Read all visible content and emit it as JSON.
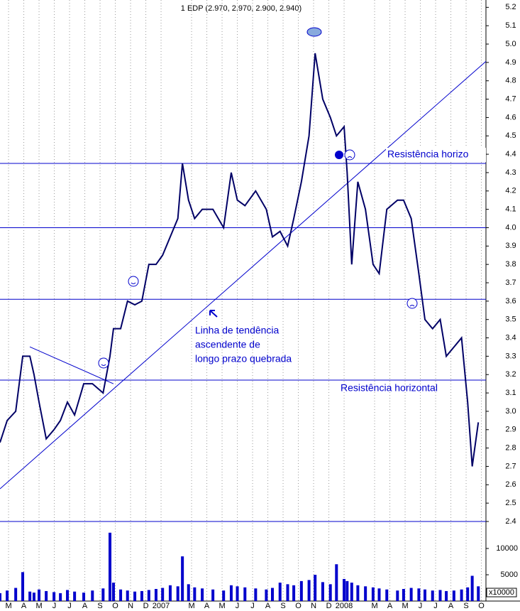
{
  "chart_data": {
    "type": "line",
    "title": "1 EDP (2.970, 2.970, 2.900, 2.940)",
    "x": [
      -0.56,
      -0.09,
      0.47,
      0.93,
      1.4,
      1.67,
      2.0,
      2.47,
      2.98,
      3.4,
      3.86,
      4.33,
      4.93,
      5.5,
      6.2,
      6.65,
      6.88,
      7.35,
      7.8,
      8.28,
      8.74,
      9.2,
      9.67,
      10.1,
      10.6,
      11.1,
      11.4,
      11.8,
      12.2,
      12.7,
      13.4,
      14.1,
      14.6,
      15.0,
      15.5,
      16.2,
      16.9,
      17.3,
      17.8,
      18.3,
      18.7,
      19.2,
      19.7,
      20.1,
      20.6,
      21.1,
      21.5,
      22.0,
      22.2,
      22.5,
      22.9,
      23.4,
      23.9,
      24.3,
      24.8,
      25.5,
      25.9,
      26.4,
      26.9,
      27.3,
      27.8,
      28.3,
      28.7,
      29.2,
      29.7,
      30.1,
      30.4,
      30.8
    ],
    "series": [
      {
        "color": "#000066",
        "values": [
          2.83,
          2.95,
          3.0,
          3.3,
          3.3,
          3.2,
          3.05,
          2.85,
          2.9,
          2.95,
          3.05,
          2.98,
          3.15,
          3.15,
          3.1,
          3.3,
          3.45,
          3.45,
          3.6,
          3.58,
          3.6,
          3.8,
          3.8,
          3.85,
          3.95,
          4.05,
          4.35,
          4.15,
          4.05,
          4.1,
          4.1,
          4.0,
          4.3,
          4.15,
          4.12,
          4.2,
          4.1,
          3.95,
          3.98,
          3.9,
          4.05,
          4.25,
          4.5,
          4.95,
          4.7,
          4.6,
          4.5,
          4.55,
          4.3,
          3.8,
          4.25,
          4.1,
          3.8,
          3.75,
          4.1,
          4.15,
          4.15,
          4.05,
          3.75,
          3.5,
          3.45,
          3.5,
          3.3,
          3.35,
          3.4,
          3.05,
          2.7,
          2.94
        ]
      }
    ],
    "volume": {
      "color": "#0000cc",
      "values": [
        1500,
        2000,
        2500,
        5500,
        1800,
        1600,
        2200,
        1900,
        1700,
        1500,
        2100,
        1800,
        1600,
        2000,
        2400,
        13000,
        3500,
        2200,
        2000,
        1800,
        1900,
        2100,
        2300,
        2500,
        3000,
        2800,
        8500,
        3200,
        2600,
        2400,
        2200,
        2000,
        3000,
        2800,
        2600,
        2400,
        2200,
        2500,
        3500,
        3200,
        3000,
        3800,
        4000,
        5000,
        3600,
        3200,
        7000,
        4200,
        3800,
        3500,
        3000,
        2800,
        2600,
        2400,
        2200,
        2000,
        2300,
        2500,
        2400,
        2200,
        2000,
        2100,
        1900,
        2000,
        2200,
        2600,
        4800,
        2800
      ],
      "ylim": [
        0,
        14865
      ],
      "yticks": [
        5000,
        10000
      ],
      "unit_label": "x10000"
    },
    "xlim": [
      -0.56,
      31.3
    ],
    "xticks": [
      {
        "value": 0,
        "label": "M"
      },
      {
        "value": 1,
        "label": "A"
      },
      {
        "value": 2,
        "label": "M"
      },
      {
        "value": 3,
        "label": "J"
      },
      {
        "value": 4,
        "label": "J"
      },
      {
        "value": 5,
        "label": "A"
      },
      {
        "value": 6,
        "label": "S"
      },
      {
        "value": 7,
        "label": "O"
      },
      {
        "value": 8,
        "label": "N"
      },
      {
        "value": 9,
        "label": "D"
      },
      {
        "value": 10,
        "label": "2007"
      },
      {
        "value": 12,
        "label": "M"
      },
      {
        "value": 13,
        "label": "A"
      },
      {
        "value": 14,
        "label": "M"
      },
      {
        "value": 15,
        "label": "J"
      },
      {
        "value": 16,
        "label": "J"
      },
      {
        "value": 17,
        "label": "A"
      },
      {
        "value": 18,
        "label": "S"
      },
      {
        "value": 19,
        "label": "O"
      },
      {
        "value": 20,
        "label": "N"
      },
      {
        "value": 21,
        "label": "D"
      },
      {
        "value": 22,
        "label": "2008"
      },
      {
        "value": 24,
        "label": "M"
      },
      {
        "value": 25,
        "label": "A"
      },
      {
        "value": 26,
        "label": "M"
      },
      {
        "value": 27,
        "label": "J"
      },
      {
        "value": 28,
        "label": "J"
      },
      {
        "value": 29,
        "label": "A"
      },
      {
        "value": 30,
        "label": "S"
      },
      {
        "value": 31,
        "label": "O"
      }
    ],
    "ylim": [
      2.4,
      5.24
    ],
    "yticks": [
      2.4,
      2.5,
      2.6,
      2.7,
      2.8,
      2.9,
      {
        "value": 3,
        "label": "3.0"
      },
      3.1,
      3.2,
      3.3,
      3.4,
      3.5,
      3.6,
      3.7,
      3.8,
      3.9,
      {
        "value": 4,
        "label": "4.0"
      },
      4.1,
      4.2,
      4.3,
      4.4,
      4.5,
      4.6,
      4.7,
      4.8,
      4.9,
      {
        "value": 5,
        "label": "5.0"
      },
      5.1,
      5.2
    ],
    "grid": true,
    "hlines": [
      4.35,
      4.0,
      3.61,
      3.17
    ],
    "trendlines": [
      {
        "x": [
          -0.56,
          31.3
        ],
        "y": [
          2.578,
          4.906
        ]
      },
      {
        "x": [
          1.395,
          6.88
        ],
        "y": [
          3.351,
          3.15
        ]
      }
    ],
    "annotations": [
      "Resistência horizo",
      "Resistência horizontal",
      "Linha de tendência",
      "ascendente de",
      "longo prazo quebrada"
    ]
  }
}
